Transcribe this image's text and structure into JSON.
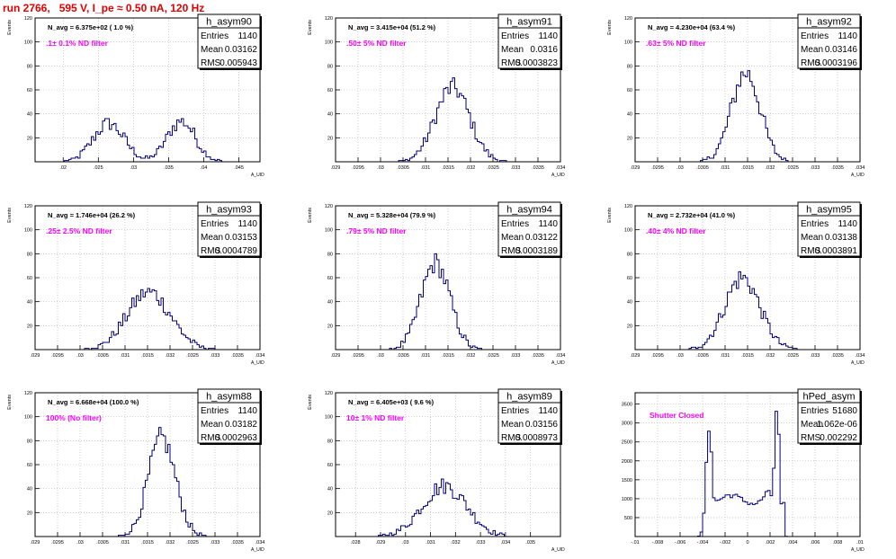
{
  "page_title": "run 2766,   595 V, I_pe ≈ 0.50 nA, 120 Hz",
  "colors": {
    "hist": "#000080",
    "annotation": "#ff00ff",
    "title": "#e00000",
    "grid": "#b0b0b0"
  },
  "chart_data": [
    {
      "type": "bar",
      "name": "h_asym90",
      "entries": "1140",
      "mean": "0.03162",
      "rms": "0.005943",
      "navg": "N_avg = 6.375e+02 ( 1.0 %)",
      "filter": ".1± 0.1% ND filter",
      "xlabel": "A_UID",
      "ylabel": "Events",
      "xlim": [
        0.016,
        0.048
      ],
      "ylim": [
        0,
        120
      ],
      "xticks": [
        0.02,
        0.025,
        0.03,
        0.035,
        0.04,
        0.045
      ],
      "yticks": [
        20,
        40,
        60,
        80,
        100,
        120
      ],
      "peaks": [
        {
          "mu": 0.0265,
          "sigma": 0.0022,
          "amp": 32
        },
        {
          "mu": 0.0368,
          "sigma": 0.002,
          "amp": 34
        }
      ]
    },
    {
      "type": "bar",
      "name": "h_asym91",
      "entries": "1140",
      "mean": "0.0316",
      "rms": "0.0003823",
      "navg": "N_avg = 3.415e+04 (51.2 %)",
      "filter": ".50± 5% ND filter",
      "xlabel": "A_UID",
      "ylabel": "Events",
      "xlim": [
        0.029,
        0.034
      ],
      "ylim": [
        0,
        120
      ],
      "xticks": [
        0.029,
        0.0295,
        0.03,
        0.0305,
        0.031,
        0.0315,
        0.032,
        0.0325,
        0.033,
        0.0335,
        0.034
      ],
      "yticks": [
        20,
        40,
        60,
        80,
        100,
        120
      ],
      "peaks": [
        {
          "mu": 0.0316,
          "sigma": 0.00038,
          "amp": 62
        }
      ]
    },
    {
      "type": "bar",
      "name": "h_asym92",
      "entries": "1140",
      "mean": "0.03146",
      "rms": "0.0003196",
      "navg": "N_avg = 4.230e+04 (63.4 %)",
      "filter": ".63± 5% ND filter",
      "xlabel": "A_UID",
      "ylabel": "Events",
      "xlim": [
        0.029,
        0.034
      ],
      "ylim": [
        0,
        120
      ],
      "xticks": [
        0.029,
        0.0295,
        0.03,
        0.0305,
        0.031,
        0.0315,
        0.032,
        0.0325,
        0.033,
        0.0335,
        0.034
      ],
      "yticks": [
        20,
        40,
        60,
        80,
        100,
        120
      ],
      "peaks": [
        {
          "mu": 0.03146,
          "sigma": 0.00032,
          "amp": 74
        }
      ]
    },
    {
      "type": "bar",
      "name": "h_asym93",
      "entries": "1140",
      "mean": "0.03153",
      "rms": "0.0004789",
      "navg": "N_avg = 1.746e+04 (26.2 %)",
      "filter": ".25± 2.5% ND filter",
      "xlabel": "A_UID",
      "ylabel": "Events",
      "xlim": [
        0.029,
        0.034
      ],
      "ylim": [
        0,
        120
      ],
      "xticks": [
        0.029,
        0.0295,
        0.03,
        0.0305,
        0.031,
        0.0315,
        0.032,
        0.0325,
        0.033,
        0.0335,
        0.034
      ],
      "yticks": [
        20,
        40,
        60,
        80,
        100,
        120
      ],
      "peaks": [
        {
          "mu": 0.03153,
          "sigma": 0.00048,
          "amp": 48
        }
      ]
    },
    {
      "type": "bar",
      "name": "h_asym94",
      "entries": "1140",
      "mean": "0.03122",
      "rms": "0.0003189",
      "navg": "N_avg = 5.328e+04 (79.9 %)",
      "filter": ".79± 5% ND filter",
      "xlabel": "A_UID",
      "ylabel": "Events",
      "xlim": [
        0.029,
        0.034
      ],
      "ylim": [
        0,
        120
      ],
      "xticks": [
        0.029,
        0.0295,
        0.03,
        0.0305,
        0.031,
        0.0315,
        0.032,
        0.0325,
        0.033,
        0.0335,
        0.034
      ],
      "yticks": [
        20,
        40,
        60,
        80,
        100,
        120
      ],
      "peaks": [
        {
          "mu": 0.03122,
          "sigma": 0.00032,
          "amp": 72
        }
      ]
    },
    {
      "type": "bar",
      "name": "h_asym95",
      "entries": "1140",
      "mean": "0.03138",
      "rms": "0.0003891",
      "navg": "N_avg = 2.732e+04 (41.0 %)",
      "filter": ".40± 4% ND filter",
      "xlabel": "A_UID",
      "ylabel": "Events",
      "xlim": [
        0.029,
        0.034
      ],
      "ylim": [
        0,
        120
      ],
      "xticks": [
        0.029,
        0.0295,
        0.03,
        0.0305,
        0.031,
        0.0315,
        0.032,
        0.0325,
        0.033,
        0.0335,
        0.034
      ],
      "yticks": [
        20,
        40,
        60,
        80,
        100,
        120
      ],
      "peaks": [
        {
          "mu": 0.03138,
          "sigma": 0.00039,
          "amp": 60
        }
      ]
    },
    {
      "type": "bar",
      "name": "h_asym88",
      "entries": "1140",
      "mean": "0.03182",
      "rms": "0.0002963",
      "navg": "N_avg = 6.668e+04 (100.0 %)",
      "filter": "100% (No filter)",
      "xlabel": "A_UID",
      "ylabel": "Events",
      "xlim": [
        0.029,
        0.034
      ],
      "ylim": [
        0,
        120
      ],
      "xticks": [
        0.029,
        0.0295,
        0.03,
        0.0305,
        0.031,
        0.0315,
        0.032,
        0.0325,
        0.033,
        0.0335,
        0.034
      ],
      "yticks": [
        20,
        40,
        60,
        80,
        100,
        120
      ],
      "peaks": [
        {
          "mu": 0.03182,
          "sigma": 0.0003,
          "amp": 82
        }
      ]
    },
    {
      "type": "bar",
      "name": "h_asym89",
      "entries": "1140",
      "mean": "0.03156",
      "rms": "0.0008973",
      "navg": "N_avg = 6.405e+03 ( 9.6 %)",
      "filter": "10± 1% ND filter",
      "xlabel": "A_UID",
      "ylabel": "Events",
      "xlim": [
        0.0272,
        0.0362
      ],
      "ylim": [
        0,
        120
      ],
      "xticks": [
        0.028,
        0.029,
        0.03,
        0.031,
        0.032,
        0.033,
        0.034,
        0.035
      ],
      "yticks": [
        20,
        40,
        60,
        80,
        100,
        120
      ],
      "peaks": [
        {
          "mu": 0.03156,
          "sigma": 0.0009,
          "amp": 42
        }
      ]
    },
    {
      "type": "bar",
      "name": "hPed_asym",
      "entries": "51680",
      "mean": "1.062e-06",
      "rms": "0.002292",
      "navg": "",
      "filter": "Shutter Closed",
      "xlabel": "A_UID",
      "ylabel": "",
      "xlim": [
        -0.01,
        0.01
      ],
      "ylim": [
        0,
        3800
      ],
      "xticks": [
        -0.01,
        -0.008,
        -0.006,
        -0.004,
        -0.002,
        0,
        0.002,
        0.004,
        0.006,
        0.008,
        0.01
      ],
      "yticks": [
        500,
        1000,
        1500,
        2000,
        2500,
        3000,
        3500
      ],
      "pedestal": true
    }
  ]
}
